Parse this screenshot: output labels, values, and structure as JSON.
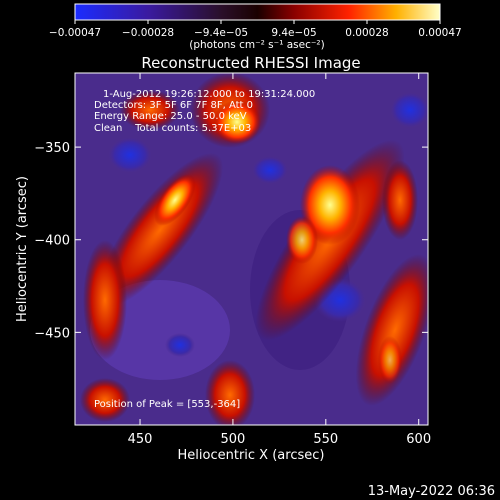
{
  "title": "Reconstructed RHESSI Image",
  "colorbar": {
    "ticks": [
      "-0.00047",
      "-0.00028",
      "-9.4e-05",
      "9.4e-05",
      "0.00028",
      "0.00047"
    ],
    "label": "(photons cm⁻² s⁻¹ asec⁻²)",
    "min": -0.00047,
    "max": 0.00047
  },
  "annotations": {
    "time_range": "1-Aug-2012 19:26:12.000 to 19:31:24.000",
    "detectors": "Detectors: 3F 5F 6F 7F 8F, Att 0",
    "energy": "Energy Range: 25.0 - 50.0 keV",
    "clean": "Clean    Total counts: 5.37E+03",
    "peak": "Position of Peak = [553,-364]"
  },
  "footer_date": "13-May-2022 06:36",
  "chart_data": {
    "type": "heatmap",
    "title": "Reconstructed RHESSI Image",
    "xlabel": "Heliocentric X (arcsec)",
    "ylabel": "Heliocentric Y (arcsec)",
    "xlim": [
      415,
      605
    ],
    "ylim": [
      -500,
      -310
    ],
    "xticks": [
      450,
      500,
      550,
      600
    ],
    "yticks": [
      -350,
      -400,
      -450
    ],
    "peak": [
      553,
      -364
    ],
    "bright_ridges": [
      {
        "from": [
          425,
          -440
        ],
        "to": [
          515,
          -330
        ]
      },
      {
        "from": [
          520,
          -455
        ],
        "to": [
          600,
          -320
        ]
      },
      {
        "from": [
          440,
          -500
        ],
        "to": [
          560,
          -430
        ]
      }
    ]
  }
}
